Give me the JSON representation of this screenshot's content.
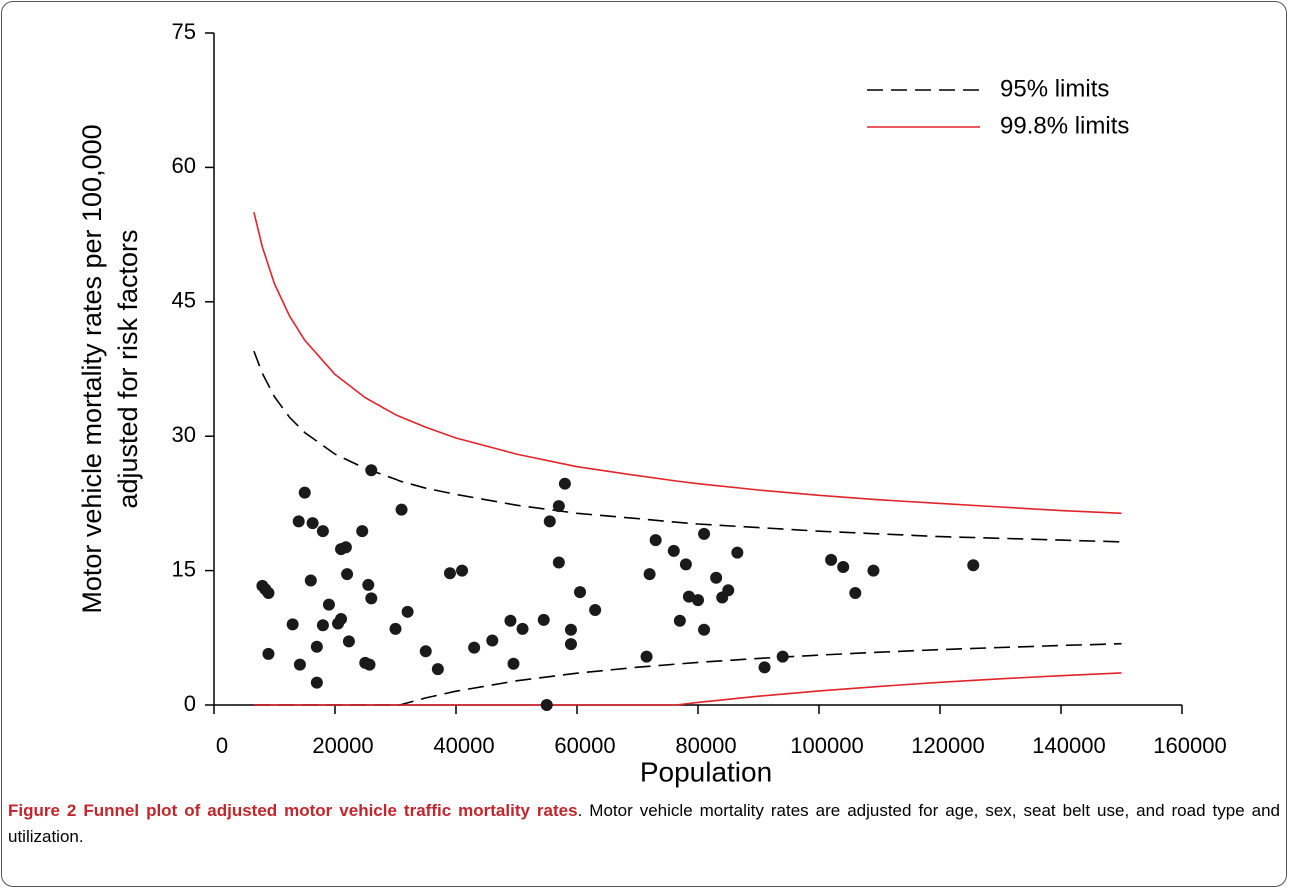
{
  "chart_data": {
    "type": "scatter",
    "xlabel": "Population",
    "ylabel": [
      "Motor vehicle mortality rates per 100,000",
      "adjusted for risk factors"
    ],
    "xlim": [
      0,
      160000
    ],
    "xticks": [
      0,
      20000,
      40000,
      60000,
      80000,
      100000,
      120000,
      140000,
      160000
    ],
    "ylim": [
      0,
      75
    ],
    "yticks": [
      0,
      15,
      30,
      45,
      60,
      75
    ],
    "grid": false,
    "legend": "upper right",
    "point_color": "#1a1a1a",
    "x": [
      8000,
      8500,
      9000,
      9000,
      13000,
      14000,
      14200,
      15000,
      16000,
      16300,
      17000,
      17000,
      18000,
      18000,
      19000,
      20500,
      21000,
      21000,
      21800,
      22000,
      22300,
      24500,
      25000,
      25500,
      25700,
      26000,
      26000,
      30000,
      31000,
      32000,
      35000,
      37000,
      39000,
      41000,
      43000,
      46000,
      49000,
      49500,
      51000,
      54500,
      55000,
      55500,
      57000,
      57000,
      58000,
      59000,
      59000,
      60500,
      63000,
      71500,
      72000,
      73000,
      76000,
      77000,
      78000,
      78500,
      80000,
      81000,
      81000,
      83000,
      84000,
      85000,
      86500,
      91000,
      94000,
      102000,
      104000,
      106000,
      109000,
      125500
    ],
    "values": [
      13.3,
      12.9,
      12.5,
      5.7,
      9.0,
      20.5,
      4.5,
      23.7,
      13.9,
      20.3,
      2.5,
      6.5,
      19.4,
      8.9,
      11.2,
      9.1,
      17.4,
      9.6,
      17.6,
      14.6,
      7.1,
      19.4,
      4.7,
      13.4,
      4.5,
      26.2,
      11.9,
      8.5,
      21.8,
      10.4,
      6.0,
      4.0,
      14.7,
      15.0,
      6.4,
      7.2,
      9.4,
      4.6,
      8.5,
      9.5,
      0,
      20.5,
      22.2,
      15.9,
      24.7,
      6.8,
      8.4,
      12.6,
      10.6,
      5.4,
      14.6,
      18.4,
      17.2,
      9.4,
      15.7,
      12.1,
      11.7,
      8.4,
      19.1,
      14.2,
      12.0,
      12.8,
      17.0,
      4.2,
      5.4,
      16.2,
      15.4,
      12.5,
      15.0,
      15.6
    ],
    "limits_x": [
      6600,
      8000,
      10000,
      12500,
      15000,
      20000,
      25000,
      30000,
      30700,
      35000,
      40000,
      50000,
      60000,
      70000,
      76400,
      80000,
      90000,
      100000,
      110000,
      120000,
      130000,
      140000,
      150000
    ],
    "limits": [
      {
        "name": "95% limits",
        "color": "#000000",
        "dashed": true,
        "upper": [
          39.5,
          37.0,
          34.4,
          32.1,
          30.4,
          28.0,
          26.4,
          25.2,
          25.0,
          24.2,
          23.5,
          22.3,
          21.4,
          20.8,
          20.4,
          20.2,
          19.8,
          19.4,
          19.1,
          18.8,
          18.6,
          18.4,
          18.2
        ],
        "lower": [
          0,
          0,
          0,
          0,
          0,
          0,
          0,
          0,
          0,
          0.79,
          1.54,
          2.7,
          3.55,
          4.22,
          4.57,
          4.75,
          5.2,
          5.57,
          5.89,
          6.18,
          6.42,
          6.64,
          6.84
        ]
      },
      {
        "name": "99.8% limits",
        "color": "#e0242b",
        "dashed": false,
        "upper": [
          55.0,
          51.1,
          47.0,
          43.4,
          40.7,
          36.9,
          34.3,
          32.4,
          32.2,
          31.0,
          29.8,
          28.0,
          26.6,
          25.6,
          25.0,
          24.7,
          24.0,
          23.4,
          22.9,
          22.5,
          22.1,
          21.7,
          21.4
        ],
        "lower": [
          0,
          0,
          0,
          0,
          0,
          0,
          0,
          0,
          0,
          0,
          0,
          0,
          0,
          0,
          0,
          0.29,
          0.98,
          1.57,
          2.08,
          2.53,
          2.92,
          3.27,
          3.58
        ]
      }
    ]
  },
  "caption": {
    "title": "Figure 2 Funnel plot of adjusted motor vehicle traffic mortality rates",
    "text": ". Motor vehicle mortality rates are adjusted for age, sex, seat belt use, and road type and utilization."
  }
}
